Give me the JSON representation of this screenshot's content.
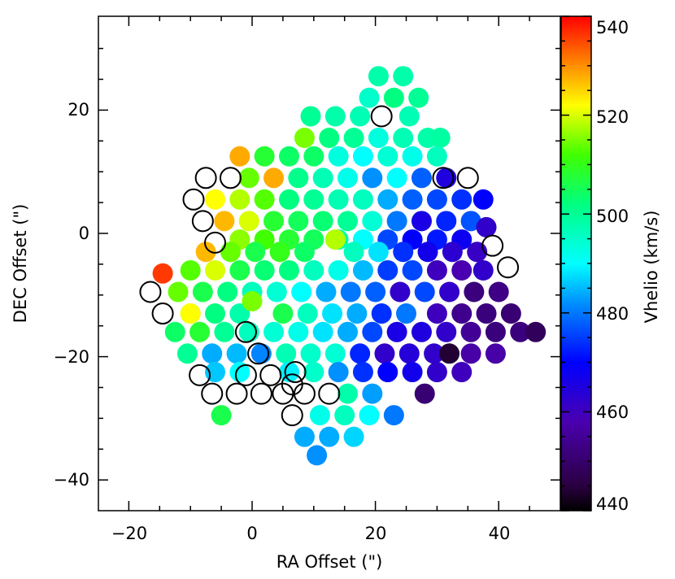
{
  "chart_data": {
    "type": "scatter",
    "title": "",
    "xlabel": "RA Offset (\")",
    "ylabel": "DEC Offset (\")",
    "xlim": [
      -25,
      50
    ],
    "ylim": [
      -45,
      35
    ],
    "x_ticks": [
      -20,
      0,
      20,
      40
    ],
    "x_tick_labels": [
      "−20",
      "0",
      "20",
      "40"
    ],
    "y_ticks": [
      -40,
      -20,
      0,
      20
    ],
    "y_tick_labels": [
      "−40",
      "−20",
      "0",
      "20"
    ],
    "colorbar": {
      "label": "Vhelio (km/s)",
      "min": 440,
      "max": 540,
      "ticks": [
        440,
        460,
        480,
        500,
        520,
        540
      ],
      "tick_labels": [
        "440",
        "460",
        "480",
        "500",
        "520",
        "540"
      ],
      "colormap": "rainbow",
      "placement": "right"
    },
    "grid": false,
    "series": [
      {
        "marker": "filled-circle",
        "colored_by": "Vhelio",
        "points": [
          {
            "x": 20.5,
            "y": 25.5,
            "v": 498
          },
          {
            "x": 24.5,
            "y": 25.5,
            "v": 498
          },
          {
            "x": 19.0,
            "y": 22.0,
            "v": 495
          },
          {
            "x": 23.0,
            "y": 22.0,
            "v": 502
          },
          {
            "x": 27.0,
            "y": 22.0,
            "v": 500
          },
          {
            "x": 9.5,
            "y": 19.0,
            "v": 500
          },
          {
            "x": 13.5,
            "y": 19.0,
            "v": 498
          },
          {
            "x": 17.5,
            "y": 19.0,
            "v": 497
          },
          {
            "x": 25.5,
            "y": 19.0,
            "v": 497
          },
          {
            "x": 8.5,
            "y": 15.5,
            "v": 515
          },
          {
            "x": 12.5,
            "y": 15.5,
            "v": 502
          },
          {
            "x": 16.5,
            "y": 15.5,
            "v": 500
          },
          {
            "x": 20.5,
            "y": 15.5,
            "v": 493
          },
          {
            "x": 24.5,
            "y": 15.5,
            "v": 497
          },
          {
            "x": 28.5,
            "y": 15.5,
            "v": 498
          },
          {
            "x": 30.5,
            "y": 15.5,
            "v": 499
          },
          {
            "x": -2.0,
            "y": 12.5,
            "v": 528
          },
          {
            "x": 2.0,
            "y": 12.5,
            "v": 508
          },
          {
            "x": 6.0,
            "y": 12.5,
            "v": 504
          },
          {
            "x": 10.0,
            "y": 12.5,
            "v": 504
          },
          {
            "x": 14.0,
            "y": 12.5,
            "v": 493
          },
          {
            "x": 18.0,
            "y": 12.5,
            "v": 490
          },
          {
            "x": 22.0,
            "y": 12.5,
            "v": 494
          },
          {
            "x": 26.0,
            "y": 12.5,
            "v": 492
          },
          {
            "x": 30.0,
            "y": 12.5,
            "v": 496
          },
          {
            "x": -0.5,
            "y": 9.0,
            "v": 514
          },
          {
            "x": 3.5,
            "y": 9.0,
            "v": 528
          },
          {
            "x": 7.5,
            "y": 9.0,
            "v": 501
          },
          {
            "x": 11.5,
            "y": 9.0,
            "v": 497
          },
          {
            "x": 15.5,
            "y": 9.0,
            "v": 492
          },
          {
            "x": 19.5,
            "y": 9.0,
            "v": 482
          },
          {
            "x": 23.5,
            "y": 9.0,
            "v": 490
          },
          {
            "x": 27.5,
            "y": 9.0,
            "v": 478
          },
          {
            "x": 31.5,
            "y": 9.0,
            "v": 465
          },
          {
            "x": -6.0,
            "y": 5.5,
            "v": 522
          },
          {
            "x": -2.0,
            "y": 5.5,
            "v": 518
          },
          {
            "x": 2.0,
            "y": 5.5,
            "v": 513
          },
          {
            "x": 6.0,
            "y": 5.5,
            "v": 502
          },
          {
            "x": 10.0,
            "y": 5.5,
            "v": 500
          },
          {
            "x": 14.0,
            "y": 5.5,
            "v": 497
          },
          {
            "x": 18.0,
            "y": 5.5,
            "v": 496
          },
          {
            "x": 22.0,
            "y": 5.5,
            "v": 484
          },
          {
            "x": 26.0,
            "y": 5.5,
            "v": 478
          },
          {
            "x": 30.0,
            "y": 5.5,
            "v": 476
          },
          {
            "x": 34.0,
            "y": 5.5,
            "v": 474
          },
          {
            "x": 37.5,
            "y": 5.5,
            "v": 470
          },
          {
            "x": -4.5,
            "y": 2.0,
            "v": 527
          },
          {
            "x": -0.5,
            "y": 2.0,
            "v": 520
          },
          {
            "x": 3.5,
            "y": 2.0,
            "v": 508
          },
          {
            "x": 7.5,
            "y": 2.0,
            "v": 505
          },
          {
            "x": 11.5,
            "y": 2.0,
            "v": 503
          },
          {
            "x": 15.5,
            "y": 2.0,
            "v": 500
          },
          {
            "x": 19.5,
            "y": 2.0,
            "v": 494
          },
          {
            "x": 23.5,
            "y": 2.0,
            "v": 480
          },
          {
            "x": 27.5,
            "y": 2.0,
            "v": 466
          },
          {
            "x": 31.5,
            "y": 2.0,
            "v": 473
          },
          {
            "x": 35.5,
            "y": 2.0,
            "v": 477
          },
          {
            "x": 38.0,
            "y": 1.0,
            "v": 462
          },
          {
            "x": -2.0,
            "y": -1.0,
            "v": 516
          },
          {
            "x": 2.0,
            "y": -1.0,
            "v": 512
          },
          {
            "x": 6.0,
            "y": -1.0,
            "v": 508
          },
          {
            "x": 10.0,
            "y": -1.0,
            "v": 505
          },
          {
            "x": 14.0,
            "y": -1.0,
            "v": 498
          },
          {
            "x": 18.0,
            "y": -1.0,
            "v": 490
          },
          {
            "x": 22.0,
            "y": -1.0,
            "v": 476
          },
          {
            "x": 26.0,
            "y": -1.0,
            "v": 470
          },
          {
            "x": 30.0,
            "y": -1.0,
            "v": 472
          },
          {
            "x": 34.0,
            "y": -1.0,
            "v": 468
          },
          {
            "x": -7.5,
            "y": -3.0,
            "v": 527
          },
          {
            "x": -3.5,
            "y": -3.0,
            "v": 514
          },
          {
            "x": 0.5,
            "y": -3.0,
            "v": 506
          },
          {
            "x": 4.5,
            "y": -3.0,
            "v": 510
          },
          {
            "x": 8.5,
            "y": -3.0,
            "v": 504
          },
          {
            "x": 13.5,
            "y": -1.0,
            "v": 518
          },
          {
            "x": 16.5,
            "y": -3.0,
            "v": 496
          },
          {
            "x": 20.5,
            "y": -3.0,
            "v": 488
          },
          {
            "x": 24.5,
            "y": -3.0,
            "v": 474
          },
          {
            "x": 28.5,
            "y": -3.0,
            "v": 467
          },
          {
            "x": 32.5,
            "y": -3.0,
            "v": 463
          },
          {
            "x": 36.5,
            "y": -3.0,
            "v": 461
          },
          {
            "x": -10.0,
            "y": -6.0,
            "v": 513
          },
          {
            "x": -6.0,
            "y": -6.0,
            "v": 520
          },
          {
            "x": -2.0,
            "y": -6.0,
            "v": 506
          },
          {
            "x": 2.0,
            "y": -6.0,
            "v": 503
          },
          {
            "x": 6.0,
            "y": -6.0,
            "v": 502
          },
          {
            "x": 10.0,
            "y": -6.0,
            "v": 496
          },
          {
            "x": 14.0,
            "y": -6.0,
            "v": 492
          },
          {
            "x": 18.0,
            "y": -6.0,
            "v": 485
          },
          {
            "x": 22.0,
            "y": -6.0,
            "v": 475
          },
          {
            "x": 26.0,
            "y": -6.0,
            "v": 476
          },
          {
            "x": 30.0,
            "y": -6.0,
            "v": 460
          },
          {
            "x": 34.0,
            "y": -6.0,
            "v": 458
          },
          {
            "x": 37.5,
            "y": -6.0,
            "v": 462
          },
          {
            "x": -14.5,
            "y": -6.5,
            "v": 536
          },
          {
            "x": -12.0,
            "y": -9.5,
            "v": 514
          },
          {
            "x": -8.0,
            "y": -9.5,
            "v": 506
          },
          {
            "x": -4.0,
            "y": -9.5,
            "v": 502
          },
          {
            "x": 0.0,
            "y": -9.5,
            "v": 496
          },
          {
            "x": 4.0,
            "y": -9.5,
            "v": 494
          },
          {
            "x": 8.0,
            "y": -9.5,
            "v": 490
          },
          {
            "x": 12.0,
            "y": -9.5,
            "v": 484
          },
          {
            "x": 16.0,
            "y": -9.5,
            "v": 480
          },
          {
            "x": 20.0,
            "y": -9.5,
            "v": 478
          },
          {
            "x": 24.0,
            "y": -9.5,
            "v": 462
          },
          {
            "x": 28.0,
            "y": -9.5,
            "v": 476
          },
          {
            "x": 32.0,
            "y": -9.5,
            "v": 462
          },
          {
            "x": 36.0,
            "y": -9.5,
            "v": 452
          },
          {
            "x": 40.0,
            "y": -9.5,
            "v": 453
          },
          {
            "x": -10.0,
            "y": -13.0,
            "v": 503
          },
          {
            "x": -6.0,
            "y": -13.0,
            "v": 502
          },
          {
            "x": -2.0,
            "y": -13.0,
            "v": 498
          },
          {
            "x": 0.0,
            "y": -11.0,
            "v": 515
          },
          {
            "x": 5.0,
            "y": -13.0,
            "v": 506
          },
          {
            "x": 9.0,
            "y": -13.0,
            "v": 496
          },
          {
            "x": 13.0,
            "y": -13.0,
            "v": 488
          },
          {
            "x": 17.0,
            "y": -13.0,
            "v": 484
          },
          {
            "x": 21.0,
            "y": -13.0,
            "v": 474
          },
          {
            "x": 25.0,
            "y": -13.0,
            "v": 480
          },
          {
            "x": 30.0,
            "y": -13.0,
            "v": 460
          },
          {
            "x": 34.0,
            "y": -13.0,
            "v": 454
          },
          {
            "x": 38.0,
            "y": -13.0,
            "v": 452
          },
          {
            "x": 42.0,
            "y": -13.0,
            "v": 451
          },
          {
            "x": -10.0,
            "y": -13.0,
            "v": 522
          },
          {
            "x": -12.5,
            "y": -16.0,
            "v": 504
          },
          {
            "x": -8.5,
            "y": -16.0,
            "v": 508
          },
          {
            "x": -4.5,
            "y": -16.0,
            "v": 500
          },
          {
            "x": -0.5,
            "y": -16.0,
            "v": 496
          },
          {
            "x": 3.5,
            "y": -16.0,
            "v": 494
          },
          {
            "x": 7.5,
            "y": -16.0,
            "v": 492
          },
          {
            "x": 11.5,
            "y": -16.0,
            "v": 488
          },
          {
            "x": 15.5,
            "y": -16.0,
            "v": 484
          },
          {
            "x": 19.5,
            "y": -16.0,
            "v": 476
          },
          {
            "x": 23.5,
            "y": -16.0,
            "v": 466
          },
          {
            "x": 27.5,
            "y": -16.0,
            "v": 465
          },
          {
            "x": 31.5,
            "y": -16.0,
            "v": 462
          },
          {
            "x": 35.5,
            "y": -16.0,
            "v": 455
          },
          {
            "x": 39.5,
            "y": -16.0,
            "v": 452
          },
          {
            "x": 43.5,
            "y": -16.0,
            "v": 452
          },
          {
            "x": 46.0,
            "y": -16.0,
            "v": 448
          },
          {
            "x": -10.5,
            "y": -19.5,
            "v": 500
          },
          {
            "x": -6.5,
            "y": -19.5,
            "v": 484
          },
          {
            "x": -2.5,
            "y": -19.5,
            "v": 485
          },
          {
            "x": 1.5,
            "y": -19.5,
            "v": 481
          },
          {
            "x": 5.5,
            "y": -19.5,
            "v": 497
          },
          {
            "x": 9.5,
            "y": -19.5,
            "v": 495
          },
          {
            "x": 13.5,
            "y": -19.5,
            "v": 494
          },
          {
            "x": 17.5,
            "y": -19.5,
            "v": 473
          },
          {
            "x": 21.5,
            "y": -19.5,
            "v": 462
          },
          {
            "x": 25.5,
            "y": -19.5,
            "v": 464
          },
          {
            "x": 29.5,
            "y": -19.5,
            "v": 462
          },
          {
            "x": 32.0,
            "y": -19.5,
            "v": 444
          },
          {
            "x": 35.5,
            "y": -19.5,
            "v": 457
          },
          {
            "x": 39.5,
            "y": -19.5,
            "v": 457
          },
          {
            "x": -6.0,
            "y": -22.5,
            "v": 486
          },
          {
            "x": -2.0,
            "y": -22.5,
            "v": 490
          },
          {
            "x": 6.0,
            "y": -22.5,
            "v": 489
          },
          {
            "x": 10.0,
            "y": -22.5,
            "v": 495
          },
          {
            "x": 14.0,
            "y": -22.5,
            "v": 482
          },
          {
            "x": 18.0,
            "y": -22.5,
            "v": 474
          },
          {
            "x": 22.0,
            "y": -22.5,
            "v": 470
          },
          {
            "x": 26.0,
            "y": -22.5,
            "v": 467
          },
          {
            "x": 30.0,
            "y": -22.5,
            "v": 462
          },
          {
            "x": 34.0,
            "y": -22.5,
            "v": 460
          },
          {
            "x": 15.5,
            "y": -26.0,
            "v": 498
          },
          {
            "x": 19.5,
            "y": -26.0,
            "v": 483
          },
          {
            "x": 28.0,
            "y": -26.0,
            "v": 451
          },
          {
            "x": -5.0,
            "y": -29.5,
            "v": 506
          },
          {
            "x": 11.0,
            "y": -29.5,
            "v": 492
          },
          {
            "x": 15.0,
            "y": -29.5,
            "v": 496
          },
          {
            "x": 19.0,
            "y": -29.5,
            "v": 490
          },
          {
            "x": 23.0,
            "y": -29.5,
            "v": 480
          },
          {
            "x": 8.5,
            "y": -33.0,
            "v": 484
          },
          {
            "x": 12.5,
            "y": -33.0,
            "v": 484
          },
          {
            "x": 16.5,
            "y": -33.0,
            "v": 487
          },
          {
            "x": 10.5,
            "y": -36.0,
            "v": 482
          }
        ]
      },
      {
        "marker": "open-circle",
        "points": [
          {
            "x": 21.0,
            "y": 19.0
          },
          {
            "x": -7.5,
            "y": 9.0
          },
          {
            "x": -3.5,
            "y": 9.0
          },
          {
            "x": 31.0,
            "y": 9.0
          },
          {
            "x": 35.0,
            "y": 9.0
          },
          {
            "x": -9.5,
            "y": 5.5
          },
          {
            "x": -8.0,
            "y": 2.0
          },
          {
            "x": -6.0,
            "y": -1.5
          },
          {
            "x": 39.0,
            "y": -2.0
          },
          {
            "x": 41.5,
            "y": -5.5
          },
          {
            "x": -16.5,
            "y": -9.5
          },
          {
            "x": -14.5,
            "y": -13.0
          },
          {
            "x": -1.0,
            "y": -16.0
          },
          {
            "x": 1.0,
            "y": -19.5
          },
          {
            "x": -8.5,
            "y": -23.0
          },
          {
            "x": -1.0,
            "y": -23.0
          },
          {
            "x": 3.0,
            "y": -23.0
          },
          {
            "x": 7.0,
            "y": -22.5
          },
          {
            "x": -6.5,
            "y": -26.0
          },
          {
            "x": -2.5,
            "y": -26.0
          },
          {
            "x": 1.5,
            "y": -26.0
          },
          {
            "x": 5.0,
            "y": -26.0
          },
          {
            "x": 8.5,
            "y": -26.0
          },
          {
            "x": 12.5,
            "y": -26.0
          },
          {
            "x": 6.5,
            "y": -24.5
          },
          {
            "x": 6.5,
            "y": -29.5
          }
        ]
      }
    ]
  }
}
